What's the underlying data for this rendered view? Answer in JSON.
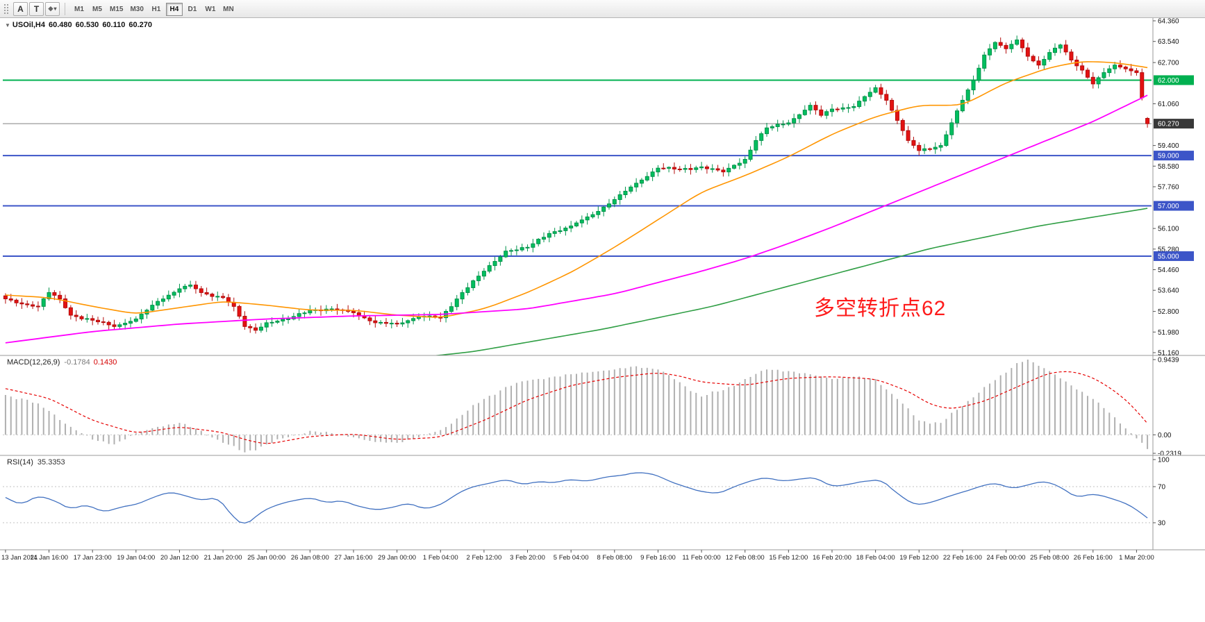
{
  "toolbar": {
    "tool_buttons": [
      {
        "label": "A"
      },
      {
        "label": "T"
      }
    ],
    "shapes_icon": "◆",
    "dropdown_icon": "▾",
    "timeframes": [
      "M1",
      "M5",
      "M15",
      "M30",
      "H1",
      "H4",
      "D1",
      "W1",
      "MN"
    ],
    "active_timeframe": "H4"
  },
  "chart": {
    "collapse_icon": "▼",
    "symbol_label": "USOil,H4",
    "ohlc": {
      "open": "60.480",
      "high": "60.530",
      "low": "60.110",
      "close": "60.270"
    },
    "annotation": {
      "text": "多空转折点62",
      "color": "#fe1b1b"
    }
  },
  "indicators": {
    "macd": {
      "label": "MACD(12,26,9)",
      "value_main": "-0.1784",
      "value_signal": "0.1430"
    },
    "rsi": {
      "label": "RSI(14)",
      "value": "35.3353"
    }
  },
  "chart_data": [
    {
      "type": "candlestick",
      "title": "USOil,H4",
      "timeframe": "H4",
      "n_bars": 211,
      "bars_per_label": 8,
      "x_labels": [
        "13 Jan 2021",
        "14 Jan 16:00",
        "17 Jan 23:00",
        "19 Jan 04:00",
        "20 Jan 12:00",
        "21 Jan 20:00",
        "25 Jan 00:00",
        "26 Jan 08:00",
        "27 Jan 16:00",
        "29 Jan 00:00",
        "1 Feb 04:00",
        "2 Feb 12:00",
        "3 Feb 20:00",
        "5 Feb 04:00",
        "8 Feb 08:00",
        "9 Feb 16:00",
        "11 Feb 00:00",
        "12 Feb 08:00",
        "15 Feb 12:00",
        "16 Feb 20:00",
        "18 Feb 04:00",
        "19 Feb 12:00",
        "22 Feb 16:00",
        "24 Feb 00:00",
        "25 Feb 08:00",
        "26 Feb 16:00",
        "1 Mar 20:00"
      ],
      "ylim": [
        51.16,
        64.36
      ],
      "y_ticks": [
        "64.360",
        "63.540",
        "62.700",
        "61.060",
        "59.400",
        "58.580",
        "57.760",
        "56.100",
        "55.280",
        "54.460",
        "53.640",
        "52.800",
        "51.980",
        "51.160"
      ],
      "last_bar": [
        60.48,
        60.53,
        60.11,
        60.27
      ],
      "close_anchors": [
        [
          0,
          53.3
        ],
        [
          3,
          53.1
        ],
        [
          6,
          53.0
        ],
        [
          8,
          53.55
        ],
        [
          10,
          53.3
        ],
        [
          12,
          52.65
        ],
        [
          16,
          52.45
        ],
        [
          20,
          52.2
        ],
        [
          24,
          52.5
        ],
        [
          28,
          53.2
        ],
        [
          32,
          53.7
        ],
        [
          34,
          53.85
        ],
        [
          36,
          53.55
        ],
        [
          40,
          53.35
        ],
        [
          42,
          53.0
        ],
        [
          44,
          52.2
        ],
        [
          46,
          52.05
        ],
        [
          48,
          52.35
        ],
        [
          52,
          52.5
        ],
        [
          56,
          52.85
        ],
        [
          60,
          52.9
        ],
        [
          64,
          52.75
        ],
        [
          68,
          52.35
        ],
        [
          72,
          52.3
        ],
        [
          76,
          52.6
        ],
        [
          80,
          52.55
        ],
        [
          84,
          53.55
        ],
        [
          88,
          54.4
        ],
        [
          92,
          55.2
        ],
        [
          96,
          55.35
        ],
        [
          100,
          55.9
        ],
        [
          104,
          56.2
        ],
        [
          108,
          56.65
        ],
        [
          112,
          57.25
        ],
        [
          116,
          57.9
        ],
        [
          120,
          58.5
        ],
        [
          124,
          58.45
        ],
        [
          128,
          58.55
        ],
        [
          132,
          58.35
        ],
        [
          136,
          58.85
        ],
        [
          138,
          59.6
        ],
        [
          140,
          60.1
        ],
        [
          144,
          60.3
        ],
        [
          148,
          61.0
        ],
        [
          150,
          60.6
        ],
        [
          152,
          60.85
        ],
        [
          156,
          60.95
        ],
        [
          160,
          61.7
        ],
        [
          162,
          61.2
        ],
        [
          164,
          60.4
        ],
        [
          166,
          59.6
        ],
        [
          168,
          59.2
        ],
        [
          172,
          59.4
        ],
        [
          176,
          61.2
        ],
        [
          178,
          62.0
        ],
        [
          180,
          63.0
        ],
        [
          182,
          63.5
        ],
        [
          184,
          63.25
        ],
        [
          186,
          63.6
        ],
        [
          188,
          62.95
        ],
        [
          190,
          62.6
        ],
        [
          192,
          63.1
        ],
        [
          194,
          63.4
        ],
        [
          196,
          62.8
        ],
        [
          198,
          62.4
        ],
        [
          200,
          61.85
        ],
        [
          202,
          62.3
        ],
        [
          204,
          62.6
        ],
        [
          206,
          62.45
        ],
        [
          208,
          62.3
        ],
        [
          209,
          61.3
        ],
        [
          210,
          60.27
        ]
      ],
      "colors": {
        "up": "#00bf5f",
        "up_border": "#00934a",
        "down": "#e31212",
        "down_border": "#b50d0d"
      },
      "hlines": [
        {
          "price": 62.0,
          "label": "62.000",
          "color": "#00b050",
          "width": 2
        },
        {
          "price": 59.0,
          "label": "59.000",
          "color": "#3c55c8",
          "width": 2
        },
        {
          "price": 57.0,
          "label": "57.000",
          "color": "#3c55c8",
          "width": 2
        },
        {
          "price": 55.0,
          "label": "55.000",
          "color": "#3c55c8",
          "width": 2
        }
      ],
      "current_price": {
        "value": 60.27,
        "label": "60.270",
        "line_color": "#808080",
        "badge_color": "#383838"
      },
      "moving_averages": [
        {
          "name": "ma-fast-orange",
          "color": "#ff9500",
          "width": 1.6,
          "anchors": [
            [
              0,
              53.45
            ],
            [
              8,
              53.35
            ],
            [
              16,
              53.0
            ],
            [
              24,
              52.7
            ],
            [
              32,
              52.95
            ],
            [
              40,
              53.2
            ],
            [
              48,
              53.05
            ],
            [
              56,
              52.85
            ],
            [
              64,
              52.85
            ],
            [
              72,
              52.65
            ],
            [
              80,
              52.55
            ],
            [
              88,
              52.9
            ],
            [
              96,
              53.55
            ],
            [
              104,
              54.35
            ],
            [
              112,
              55.35
            ],
            [
              120,
              56.45
            ],
            [
              128,
              57.55
            ],
            [
              136,
              58.2
            ],
            [
              144,
              58.95
            ],
            [
              152,
              59.85
            ],
            [
              160,
              60.55
            ],
            [
              168,
              61.0
            ],
            [
              176,
              61.0
            ],
            [
              184,
              61.9
            ],
            [
              192,
              62.5
            ],
            [
              198,
              62.75
            ],
            [
              204,
              62.7
            ],
            [
              210,
              62.5
            ]
          ]
        },
        {
          "name": "ma-mid-magenta",
          "color": "#ff00ff",
          "width": 1.8,
          "anchors": [
            [
              0,
              51.55
            ],
            [
              16,
              52.0
            ],
            [
              32,
              52.3
            ],
            [
              48,
              52.5
            ],
            [
              64,
              52.62
            ],
            [
              80,
              52.68
            ],
            [
              96,
              52.9
            ],
            [
              112,
              53.5
            ],
            [
              128,
              54.4
            ],
            [
              136,
              54.9
            ],
            [
              144,
              55.5
            ],
            [
              152,
              56.15
            ],
            [
              160,
              56.85
            ],
            [
              168,
              57.55
            ],
            [
              176,
              58.25
            ],
            [
              184,
              58.95
            ],
            [
              192,
              59.65
            ],
            [
              200,
              60.35
            ],
            [
              210,
              61.4
            ]
          ]
        },
        {
          "name": "ma-slow-green",
          "color": "#2f9e44",
          "width": 1.6,
          "anchors": [
            [
              60,
              50.6
            ],
            [
              86,
              51.2
            ],
            [
              110,
              52.1
            ],
            [
              130,
              53.0
            ],
            [
              150,
              54.15
            ],
            [
              170,
              55.3
            ],
            [
              190,
              56.2
            ],
            [
              210,
              56.9
            ]
          ]
        }
      ]
    },
    {
      "type": "bar",
      "title": "MACD(12,26,9)",
      "current_main": -0.1784,
      "current_signal": 0.143,
      "ylim": [
        -0.2319,
        0.9439
      ],
      "y_ticks": [
        "0.9439",
        "0.00",
        "-0.2319"
      ],
      "histogram_color": "#b0b0b0",
      "signal_color": "#e60000",
      "histogram_anchors": [
        [
          0,
          0.5
        ],
        [
          4,
          0.44
        ],
        [
          8,
          0.3
        ],
        [
          12,
          0.1
        ],
        [
          16,
          -0.06
        ],
        [
          20,
          -0.12
        ],
        [
          24,
          0.02
        ],
        [
          28,
          0.1
        ],
        [
          32,
          0.15
        ],
        [
          36,
          0.05
        ],
        [
          40,
          -0.1
        ],
        [
          44,
          -0.22
        ],
        [
          48,
          -0.12
        ],
        [
          52,
          -0.03
        ],
        [
          56,
          0.05
        ],
        [
          60,
          0.02
        ],
        [
          64,
          -0.03
        ],
        [
          68,
          -0.09
        ],
        [
          72,
          -0.1
        ],
        [
          76,
          -0.03
        ],
        [
          80,
          0.06
        ],
        [
          84,
          0.25
        ],
        [
          88,
          0.45
        ],
        [
          92,
          0.6
        ],
        [
          96,
          0.68
        ],
        [
          100,
          0.72
        ],
        [
          104,
          0.76
        ],
        [
          108,
          0.79
        ],
        [
          112,
          0.82
        ],
        [
          116,
          0.86
        ],
        [
          120,
          0.82
        ],
        [
          124,
          0.66
        ],
        [
          128,
          0.48
        ],
        [
          132,
          0.56
        ],
        [
          136,
          0.7
        ],
        [
          140,
          0.82
        ],
        [
          144,
          0.8
        ],
        [
          148,
          0.76
        ],
        [
          152,
          0.7
        ],
        [
          156,
          0.73
        ],
        [
          160,
          0.7
        ],
        [
          164,
          0.45
        ],
        [
          168,
          0.18
        ],
        [
          172,
          0.15
        ],
        [
          176,
          0.36
        ],
        [
          180,
          0.6
        ],
        [
          184,
          0.78
        ],
        [
          186,
          0.9
        ],
        [
          188,
          0.9439
        ],
        [
          192,
          0.8
        ],
        [
          196,
          0.62
        ],
        [
          200,
          0.45
        ],
        [
          204,
          0.22
        ],
        [
          207,
          0.02
        ],
        [
          209,
          -0.1
        ],
        [
          210,
          -0.1784
        ]
      ],
      "signal_anchors": [
        [
          0,
          0.58
        ],
        [
          8,
          0.46
        ],
        [
          16,
          0.18
        ],
        [
          24,
          0.02
        ],
        [
          32,
          0.1
        ],
        [
          40,
          0.03
        ],
        [
          44,
          -0.06
        ],
        [
          48,
          -0.12
        ],
        [
          56,
          -0.02
        ],
        [
          64,
          0.01
        ],
        [
          72,
          -0.06
        ],
        [
          80,
          -0.03
        ],
        [
          88,
          0.18
        ],
        [
          96,
          0.44
        ],
        [
          104,
          0.62
        ],
        [
          112,
          0.72
        ],
        [
          120,
          0.78
        ],
        [
          124,
          0.74
        ],
        [
          128,
          0.66
        ],
        [
          136,
          0.62
        ],
        [
          144,
          0.71
        ],
        [
          152,
          0.73
        ],
        [
          160,
          0.7
        ],
        [
          166,
          0.55
        ],
        [
          170,
          0.38
        ],
        [
          174,
          0.32
        ],
        [
          180,
          0.42
        ],
        [
          186,
          0.6
        ],
        [
          192,
          0.78
        ],
        [
          196,
          0.8
        ],
        [
          200,
          0.72
        ],
        [
          204,
          0.55
        ],
        [
          207,
          0.38
        ],
        [
          210,
          0.143
        ]
      ]
    },
    {
      "type": "line",
      "title": "RSI(14)",
      "current": 35.3353,
      "ylim": [
        0,
        100
      ],
      "levels": [
        70,
        30
      ],
      "y_ticks": [
        "100",
        "70",
        "30"
      ],
      "color": "#4070c0",
      "anchors": [
        [
          0,
          58
        ],
        [
          3,
          50
        ],
        [
          6,
          60
        ],
        [
          9,
          55
        ],
        [
          12,
          45
        ],
        [
          15,
          50
        ],
        [
          18,
          42
        ],
        [
          21,
          47
        ],
        [
          24,
          50
        ],
        [
          27,
          58
        ],
        [
          30,
          64
        ],
        [
          33,
          60
        ],
        [
          36,
          55
        ],
        [
          39,
          58
        ],
        [
          42,
          35
        ],
        [
          44,
          27
        ],
        [
          47,
          42
        ],
        [
          50,
          50
        ],
        [
          53,
          55
        ],
        [
          56,
          58
        ],
        [
          59,
          52
        ],
        [
          62,
          55
        ],
        [
          65,
          48
        ],
        [
          68,
          44
        ],
        [
          71,
          47
        ],
        [
          74,
          52
        ],
        [
          77,
          45
        ],
        [
          80,
          50
        ],
        [
          83,
          62
        ],
        [
          86,
          70
        ],
        [
          89,
          74
        ],
        [
          92,
          78
        ],
        [
          95,
          72
        ],
        [
          98,
          76
        ],
        [
          101,
          74
        ],
        [
          104,
          78
        ],
        [
          107,
          76
        ],
        [
          110,
          80
        ],
        [
          113,
          82
        ],
        [
          116,
          86
        ],
        [
          119,
          84
        ],
        [
          122,
          76
        ],
        [
          125,
          70
        ],
        [
          128,
          64
        ],
        [
          131,
          62
        ],
        [
          134,
          70
        ],
        [
          137,
          76
        ],
        [
          140,
          80
        ],
        [
          143,
          76
        ],
        [
          146,
          78
        ],
        [
          149,
          80
        ],
        [
          152,
          70
        ],
        [
          155,
          72
        ],
        [
          158,
          76
        ],
        [
          161,
          78
        ],
        [
          164,
          62
        ],
        [
          167,
          50
        ],
        [
          170,
          52
        ],
        [
          173,
          58
        ],
        [
          176,
          64
        ],
        [
          179,
          70
        ],
        [
          182,
          74
        ],
        [
          185,
          68
        ],
        [
          188,
          72
        ],
        [
          191,
          76
        ],
        [
          194,
          70
        ],
        [
          197,
          58
        ],
        [
          200,
          62
        ],
        [
          203,
          58
        ],
        [
          206,
          52
        ],
        [
          208,
          44
        ],
        [
          210,
          35.34
        ]
      ]
    }
  ]
}
